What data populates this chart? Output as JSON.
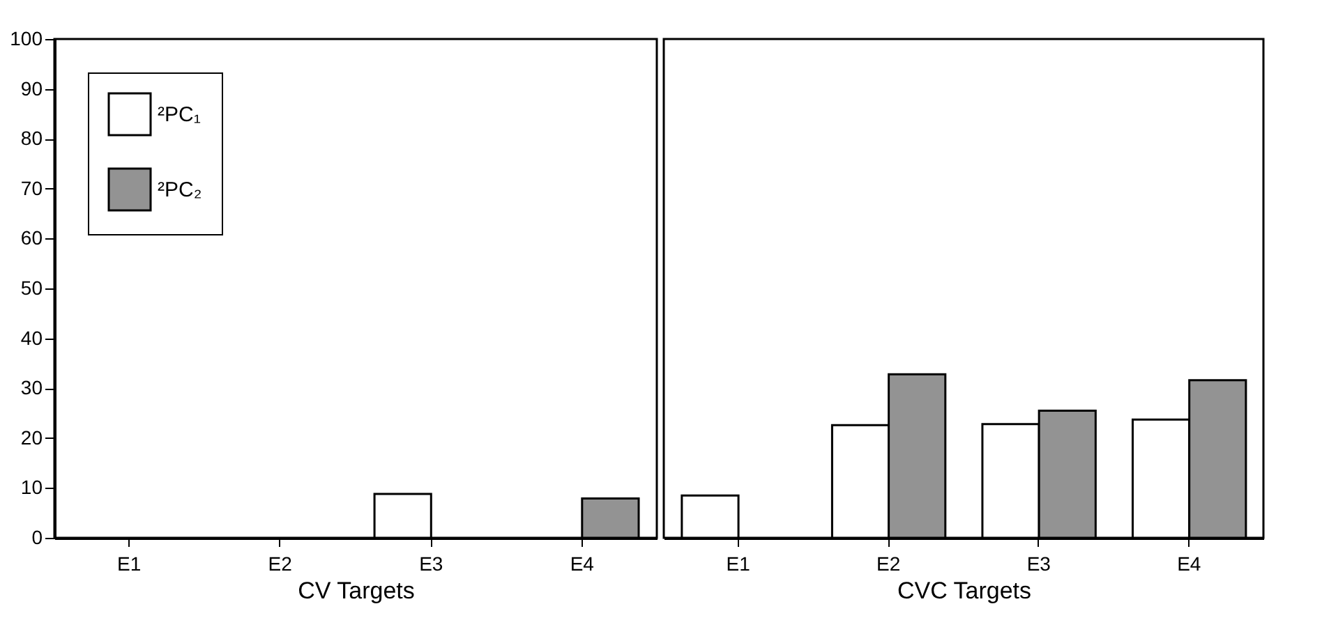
{
  "chart_data": [
    {
      "type": "bar",
      "xlabel": "CV Targets",
      "categories": [
        "E1",
        "E2",
        "E3",
        "E4"
      ],
      "ylim": [
        0,
        100
      ],
      "yticks": [
        0,
        10,
        20,
        30,
        40,
        50,
        60,
        70,
        80,
        90,
        100
      ],
      "grid": false,
      "legend": "top left",
      "series": [
        {
          "name": "²PC₁",
          "color": "#ffffff",
          "values": [
            null,
            null,
            8.8,
            null
          ]
        },
        {
          "name": "²PC₂",
          "color": "#939393",
          "values": [
            null,
            null,
            null,
            7.9
          ]
        }
      ]
    },
    {
      "type": "bar",
      "xlabel": "CVC Targets",
      "categories": [
        "E1",
        "E2",
        "E3",
        "E4"
      ],
      "ylim": [
        0,
        100
      ],
      "yticks": [
        0,
        10,
        20,
        30,
        40,
        50,
        60,
        70,
        80,
        90,
        100
      ],
      "grid": false,
      "legend": false,
      "tick_labels": "x",
      "series": [
        {
          "color": "#ffffff",
          "values": [
            8.5,
            22.6,
            22.8,
            23.7
          ]
        },
        {
          "color": "#939393",
          "values": [
            null,
            32.8,
            25.5,
            31.6
          ]
        }
      ]
    }
  ]
}
